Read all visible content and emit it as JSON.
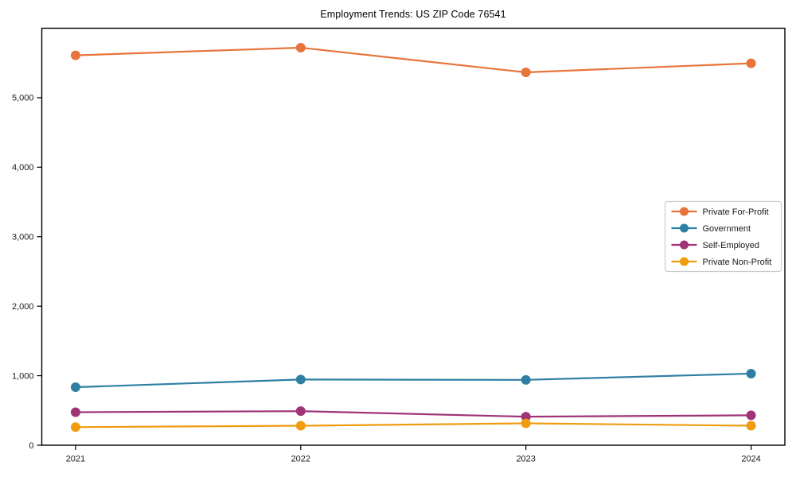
{
  "page": {
    "background": "#ffffff",
    "axis_color": "#000000",
    "legend_border_color": "#cccccc",
    "legend_background": "#ffffff"
  },
  "chart_data": {
    "type": "line",
    "title": "Employment Trends: US ZIP Code 76541",
    "xlabel": "",
    "ylabel": "",
    "x": [
      2021,
      2022,
      2023,
      2024
    ],
    "x_tick_labels": [
      "2021",
      "2022",
      "2023",
      "2024"
    ],
    "y_ticks": [
      0,
      1000,
      2000,
      3000,
      4000,
      5000
    ],
    "y_tick_labels": [
      "0",
      "1,000",
      "2,000",
      "3,000",
      "4,000",
      "5,000"
    ],
    "xlim": [
      2020.85,
      2024.15
    ],
    "ylim": [
      0,
      6000
    ],
    "grid": false,
    "legend_position": "center right",
    "marker": "circle",
    "series": [
      {
        "name": "Private For-Profit",
        "color": "#e8743b",
        "values": [
          5610,
          5720,
          5365,
          5495
        ]
      },
      {
        "name": "Government",
        "color": "#2f7fa3",
        "values": [
          835,
          945,
          940,
          1030
        ]
      },
      {
        "name": "Self-Employed",
        "color": "#a03477",
        "values": [
          475,
          490,
          410,
          430
        ]
      },
      {
        "name": "Private Non-Profit",
        "color": "#f09c10",
        "values": [
          260,
          280,
          315,
          280
        ]
      }
    ]
  }
}
